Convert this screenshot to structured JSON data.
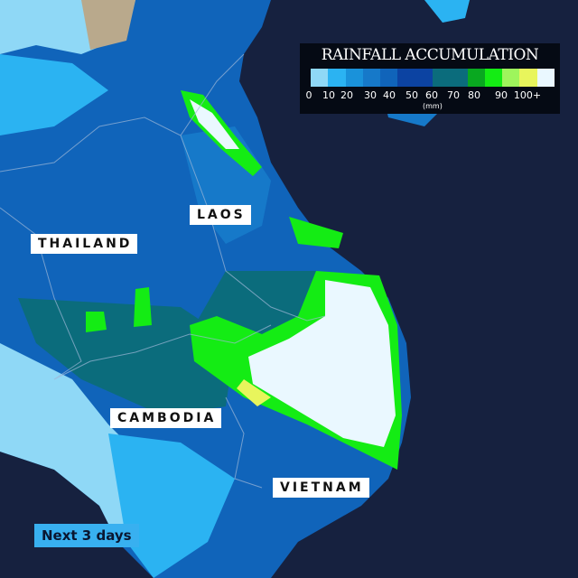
{
  "legend": {
    "title": "RAINFALL ACCUMULATION",
    "unit": "(mm)",
    "ticks": [
      "0",
      "10",
      "20",
      "30",
      "40",
      "50",
      "60",
      "70",
      "80",
      "90",
      "100+"
    ],
    "colors": [
      "#8fd8f6",
      "#2bb3f2",
      "#1a92da",
      "#1679c9",
      "#1064ba",
      "#0c43a2",
      "#0c43a2",
      "#0b6c7c",
      "#0b6c7c",
      "#09a820",
      "#14ec14",
      "#9ef55c",
      "#e8f55c",
      "#eaf8ff"
    ]
  },
  "labels": {
    "laos": "LAOS",
    "thailand": "THAILAND",
    "cambodia": "CAMBODIA",
    "vietnam": "VIETNAM"
  },
  "period": "Next 3 days",
  "colors": {
    "sea": "#16213f",
    "land_base": "#1064ba",
    "heavy": "#eaf8ff",
    "green": "#14ec14",
    "teal": "#0b6c7c"
  }
}
